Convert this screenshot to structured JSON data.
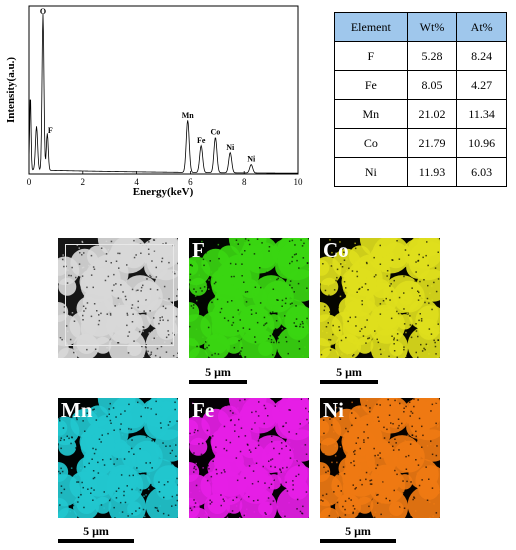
{
  "spectrum": {
    "chart_data": {
      "type": "line",
      "xlabel": "Energy(keV)",
      "ylabel": "Intensity(a.u.)",
      "xlim": [
        0,
        10
      ],
      "xticks": [
        0,
        2,
        4,
        6,
        8,
        10
      ],
      "ylim": [
        0,
        1
      ],
      "peaks": [
        {
          "label": "O",
          "x": 0.52,
          "y": 0.93
        },
        {
          "label": "F",
          "x": 0.68,
          "y": 0.22
        },
        {
          "label": "Mn",
          "x": 5.9,
          "y": 0.31
        },
        {
          "label": "Fe",
          "x": 6.4,
          "y": 0.16
        },
        {
          "label": "Co",
          "x": 6.93,
          "y": 0.21
        },
        {
          "label": "Ni",
          "x": 7.48,
          "y": 0.12
        },
        {
          "label": "Ni",
          "x": 8.26,
          "y": 0.05
        }
      ]
    }
  },
  "table": {
    "headers": [
      "Element",
      "Wt%",
      "At%"
    ],
    "rows": [
      [
        "F",
        "5.28",
        "8.24"
      ],
      [
        "Fe",
        "8.05",
        "4.27"
      ],
      [
        "Mn",
        "21.02",
        "11.34"
      ],
      [
        "Co",
        "21.79",
        "10.96"
      ],
      [
        "Ni",
        "11.93",
        "6.03"
      ]
    ]
  },
  "maps": [
    {
      "label": "",
      "color": "#d8d8d8",
      "bg": "#161616"
    },
    {
      "label": "F",
      "color": "#3ad611",
      "bg": "#020502"
    },
    {
      "label": "Co",
      "color": "#dede1c",
      "bg": "#050500"
    },
    {
      "label": "Mn",
      "color": "#22c7cf",
      "bg": "#000404"
    },
    {
      "label": "Fe",
      "color": "#e61ee6",
      "bg": "#050005"
    },
    {
      "label": "Ni",
      "color": "#ef7a12",
      "bg": "#050200"
    }
  ],
  "scalebars": [
    "5 μm",
    "5 μm",
    "5 μm",
    "5 μm"
  ]
}
